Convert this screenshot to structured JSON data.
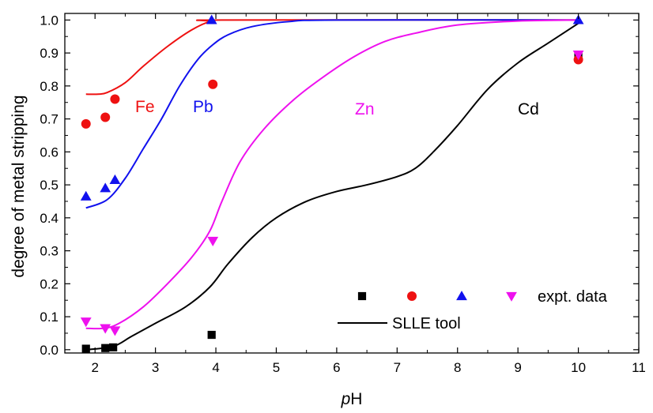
{
  "chart_data": {
    "type": "scatter",
    "title": "",
    "xlabel_italic": "p",
    "xlabel_rest": "H",
    "ylabel": "degree of metal stripping",
    "xlim": [
      1.5,
      11
    ],
    "ylim": [
      -0.01,
      1.02
    ],
    "x_ticks": [
      2,
      3,
      4,
      5,
      6,
      7,
      8,
      9,
      10,
      11
    ],
    "y_ticks": [
      0.0,
      0.1,
      0.2,
      0.3,
      0.4,
      0.5,
      0.6,
      0.7,
      0.8,
      0.9,
      1.0
    ],
    "x_tick_labels": [
      "2",
      "3",
      "4",
      "5",
      "6",
      "7",
      "8",
      "9",
      "10",
      "11"
    ],
    "y_tick_labels": [
      "0.0",
      "0.1",
      "0.2",
      "0.3",
      "0.4",
      "0.5",
      "0.6",
      "0.7",
      "0.8",
      "0.9",
      "1.0"
    ],
    "grid": false,
    "series": [
      {
        "name": "Cd",
        "color": "#000000",
        "marker": "square",
        "points": [
          [
            1.85,
            0.003
          ],
          [
            2.17,
            0.005
          ],
          [
            2.3,
            0.007
          ],
          [
            3.93,
            0.045
          ],
          [
            10.0,
            0.89
          ]
        ],
        "model": [
          [
            1.85,
            0.0
          ],
          [
            2.3,
            0.01
          ],
          [
            2.6,
            0.04
          ],
          [
            3.0,
            0.08
          ],
          [
            3.5,
            0.13
          ],
          [
            3.9,
            0.19
          ],
          [
            4.2,
            0.26
          ],
          [
            4.6,
            0.34
          ],
          [
            5.0,
            0.4
          ],
          [
            5.5,
            0.45
          ],
          [
            6.0,
            0.48
          ],
          [
            6.5,
            0.5
          ],
          [
            7.0,
            0.525
          ],
          [
            7.3,
            0.55
          ],
          [
            7.6,
            0.6
          ],
          [
            8.0,
            0.68
          ],
          [
            8.5,
            0.79
          ],
          [
            9.0,
            0.87
          ],
          [
            9.5,
            0.93
          ],
          [
            10.0,
            0.99
          ]
        ]
      },
      {
        "name": "Fe",
        "color": "#ee1111",
        "marker": "circle",
        "points": [
          [
            1.85,
            0.685
          ],
          [
            2.17,
            0.705
          ],
          [
            2.33,
            0.76
          ],
          [
            3.95,
            0.805
          ],
          [
            10.0,
            0.88
          ]
        ],
        "model": [
          [
            1.85,
            0.775
          ],
          [
            2.05,
            0.775
          ],
          [
            2.2,
            0.78
          ],
          [
            2.5,
            0.81
          ],
          [
            2.8,
            0.86
          ],
          [
            3.2,
            0.92
          ],
          [
            3.6,
            0.97
          ],
          [
            3.9,
            0.995
          ],
          [
            4.2,
            1.0
          ],
          [
            10.0,
            1.0
          ]
        ]
      },
      {
        "name": "Pb",
        "color": "#1111ee",
        "marker": "triangle-up",
        "points": [
          [
            1.85,
            0.465
          ],
          [
            2.17,
            0.49
          ],
          [
            2.33,
            0.515
          ],
          [
            3.93,
            1.0
          ],
          [
            10.0,
            1.0
          ]
        ],
        "model": [
          [
            1.85,
            0.43
          ],
          [
            2.2,
            0.455
          ],
          [
            2.5,
            0.52
          ],
          [
            2.8,
            0.61
          ],
          [
            3.1,
            0.7
          ],
          [
            3.4,
            0.8
          ],
          [
            3.7,
            0.88
          ],
          [
            3.95,
            0.925
          ],
          [
            4.2,
            0.955
          ],
          [
            4.6,
            0.98
          ],
          [
            5.2,
            0.995
          ],
          [
            6.0,
            1.0
          ],
          [
            10.0,
            1.0
          ]
        ]
      },
      {
        "name": "Zn",
        "color": "#ee11ee",
        "marker": "triangle-down",
        "points": [
          [
            1.85,
            0.085
          ],
          [
            2.17,
            0.065
          ],
          [
            2.33,
            0.058
          ],
          [
            3.95,
            0.33
          ],
          [
            10.0,
            0.895
          ]
        ],
        "model": [
          [
            1.85,
            0.065
          ],
          [
            2.15,
            0.065
          ],
          [
            2.4,
            0.08
          ],
          [
            2.8,
            0.13
          ],
          [
            3.2,
            0.2
          ],
          [
            3.6,
            0.28
          ],
          [
            3.9,
            0.36
          ],
          [
            4.1,
            0.45
          ],
          [
            4.4,
            0.57
          ],
          [
            4.8,
            0.67
          ],
          [
            5.3,
            0.76
          ],
          [
            5.8,
            0.83
          ],
          [
            6.3,
            0.89
          ],
          [
            6.8,
            0.935
          ],
          [
            7.3,
            0.96
          ],
          [
            8.0,
            0.985
          ],
          [
            9.0,
            0.997
          ],
          [
            10.0,
            1.0
          ]
        ]
      }
    ],
    "legend": {
      "position": "bottom-right",
      "data_label": "expt. data",
      "model_label": "SLLE tool"
    }
  }
}
